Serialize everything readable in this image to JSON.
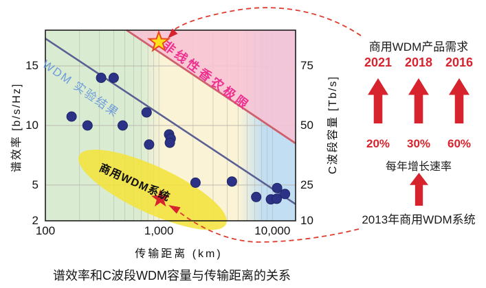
{
  "figure": {
    "caption": "谱效率和C波段WDM容量与传输距离的关系"
  },
  "chart_data": {
    "type": "scatter",
    "xlabel": "传输距离 (km)",
    "ylabel_left": "谱效率 [b/s/Hz]",
    "ylabel_right": "C波段容量 [Tb/s]",
    "x_scale": "log",
    "y_scale": "linear",
    "xlim": [
      100,
      16000
    ],
    "ylim_left": [
      2,
      18
    ],
    "ylim_right": [
      10,
      90
    ],
    "x_ticks": [
      {
        "label": "100",
        "value": 100
      },
      {
        "label": "1,000",
        "value": 1000
      },
      {
        "label": "10,000",
        "value": 10000
      }
    ],
    "y_ticks_left": [
      {
        "label": "2",
        "value": 2
      },
      {
        "label": "5",
        "value": 5
      },
      {
        "label": "10",
        "value": 10
      },
      {
        "label": "15",
        "value": 15
      }
    ],
    "y_ticks_right": [
      {
        "label": "10",
        "capacity_tbs": 10
      },
      {
        "label": "25",
        "capacity_tbs": 25
      },
      {
        "label": "50",
        "capacity_tbs": 50
      },
      {
        "label": "75",
        "capacity_tbs": 75
      }
    ],
    "grid_x_km": [
      200,
      300,
      400,
      500,
      600,
      700,
      800,
      900,
      1000,
      2000,
      3000,
      4000,
      5000,
      6000,
      7000,
      8000,
      9000,
      10000
    ],
    "grid_y_se": [
      5,
      10,
      15
    ],
    "points_km_se": [
      [
        310,
        14
      ],
      [
        400,
        14
      ],
      [
        170,
        10.75
      ],
      [
        235,
        10
      ],
      [
        480,
        10
      ],
      [
        780,
        11.1
      ],
      [
        820,
        8.4
      ],
      [
        1230,
        9.25
      ],
      [
        1270,
        8.9
      ],
      [
        1250,
        8.55
      ],
      [
        2100,
        5.2
      ],
      [
        4400,
        5.3
      ],
      [
        7200,
        4.0
      ],
      [
        9700,
        3.8
      ],
      [
        11000,
        4.75
      ],
      [
        10900,
        3.85
      ],
      [
        12900,
        4.25
      ]
    ],
    "wdm_trend_line": {
      "label": "WDM 实验结果",
      "from": [
        100,
        17.3
      ],
      "to": [
        16000,
        3.4
      ]
    },
    "shannon_limit": {
      "label": "非线性香农极限",
      "from": [
        520,
        18
      ],
      "to": [
        16000,
        8.5
      ]
    },
    "commercial_region": {
      "label": "商用WDM系统",
      "center": [
        880,
        4.6
      ]
    },
    "stars": {
      "experiment_record": [
        1000,
        17
      ],
      "commercial_2013": [
        1030,
        3.85
      ]
    }
  },
  "right_panel": {
    "title": "商用WDM产品需求",
    "columns": [
      {
        "year": "2021",
        "growth": "20%"
      },
      {
        "year": "2018",
        "growth": "30%"
      },
      {
        "year": "2016",
        "growth": "60%"
      }
    ],
    "growth_caption": "每年增长速率",
    "baseline": "2013年商用WDM系统"
  },
  "colors": {
    "accent_red": "#d6232e",
    "dashed_red": "#e03a2c",
    "pink_text": "#ee3190",
    "shannon_line": "#cf5f6c",
    "pink_fill": "#f7c3d4",
    "wdm_line": "#5a5f94",
    "dot": "#2c3387",
    "dot_edge": "#1f2566",
    "blue_label": "#6f9cd9",
    "band_green": "#d9ecd2",
    "band_yellow": "#faf3d6",
    "band_blue": "#c2def2",
    "ellipse_yellow": "#f2e33c",
    "star_yellow": "#ffe11a",
    "star_outline": "#e8471f",
    "grid": "#b9b6ae",
    "frame": "#1c1c1c"
  }
}
